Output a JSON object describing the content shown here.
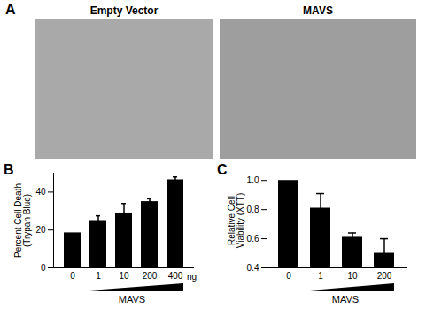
{
  "panel_a": {
    "label": "A",
    "images": [
      {
        "label": "Empty Vector"
      },
      {
        "label": "MAVS"
      }
    ]
  },
  "chart_data": [
    {
      "type": "bar",
      "panel_label": "B",
      "categories": [
        "0",
        "1",
        "10",
        "200",
        "400"
      ],
      "values": [
        18.5,
        25,
        29,
        35,
        46.5
      ],
      "errors": [
        0,
        2.5,
        5,
        1.5,
        1.5
      ],
      "x_label": "MAVS",
      "x_unit": "ng",
      "y_label": "Percent Cell Death\n(Trypan Blue)",
      "ylim": [
        0,
        50
      ],
      "yticks": [
        0,
        20,
        40
      ],
      "color": "#000000"
    },
    {
      "type": "bar",
      "panel_label": "C",
      "categories": [
        "0",
        "1",
        "10",
        "200"
      ],
      "values": [
        1,
        0.81,
        0.61,
        0.5
      ],
      "errors": [
        0,
        0.1,
        0.03,
        0.1
      ],
      "x_label": "MAVS",
      "y_label": "Relative Cell\nViability (XTT)",
      "ylim": [
        0.4,
        1.05
      ],
      "yticks": [
        0.4,
        0.6,
        0.8,
        {
          "value": 1,
          "label": "1.0"
        }
      ],
      "color": "#000000"
    }
  ]
}
